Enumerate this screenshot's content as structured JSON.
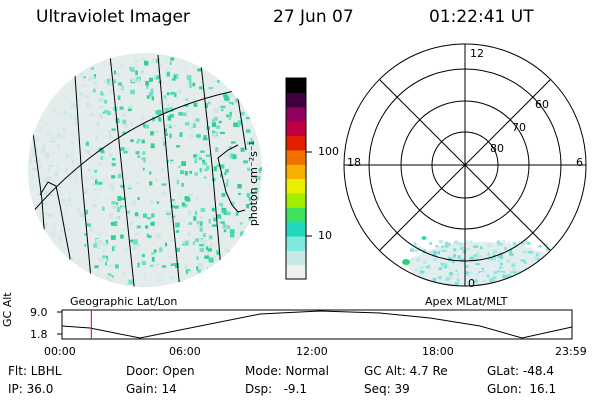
{
  "header": {
    "instrument": "Ultraviolet Imager",
    "date": "27 Jun 07",
    "time": "01:22:41 UT"
  },
  "colorbar": {
    "unit_label": "photon cm⁻²s⁻¹",
    "ticks": [
      "100",
      "10"
    ],
    "colors": [
      "#f0f0f0",
      "#c8e8e8",
      "#7fe8e0",
      "#20d8c0",
      "#40e060",
      "#a0f000",
      "#e8f000",
      "#f8b000",
      "#f07000",
      "#e02000",
      "#c00040",
      "#900060",
      "#400040",
      "#000000"
    ]
  },
  "left_panel": {
    "label": "Geographic Lat/Lon"
  },
  "right_panel": {
    "label": "Apex MLat/MLT",
    "mlt_labels": {
      "top": "12",
      "left": "18",
      "right": "6",
      "bottom": "0"
    },
    "lat_labels": [
      "60",
      "70",
      "80"
    ]
  },
  "timeline": {
    "axis_label": "GC Alt",
    "y_ticks": [
      "9.0",
      "1.8"
    ],
    "x_ticks": [
      "00:00",
      "06:00",
      "12:00",
      "18:00",
      "23:59"
    ],
    "marker_color": "#e00000",
    "marker_time_hours": 1.38
  },
  "info": {
    "row1": [
      "Flt: LBHL",
      "Door: Open",
      "Mode: Normal",
      "GC Alt: 4.7 Re",
      "GLat: -48.4"
    ],
    "row2": [
      "IP: 36.0",
      "Gain: 14",
      "Dsp:   -9.1",
      "Seq: 39",
      "GLon:  16.1"
    ]
  }
}
